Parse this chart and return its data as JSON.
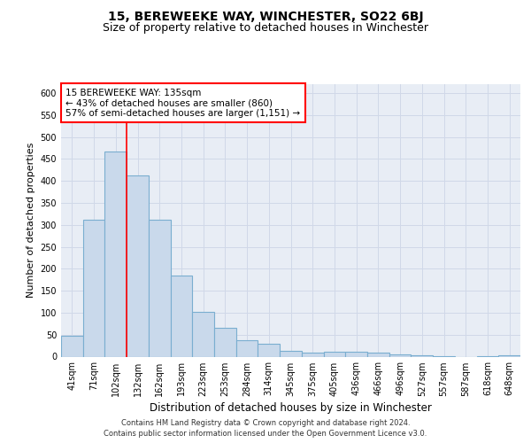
{
  "title": "15, BEREWEEKE WAY, WINCHESTER, SO22 6BJ",
  "subtitle": "Size of property relative to detached houses in Winchester",
  "xlabel": "Distribution of detached houses by size in Winchester",
  "ylabel": "Number of detached properties",
  "categories": [
    "41sqm",
    "71sqm",
    "102sqm",
    "132sqm",
    "162sqm",
    "193sqm",
    "223sqm",
    "253sqm",
    "284sqm",
    "314sqm",
    "345sqm",
    "375sqm",
    "405sqm",
    "436sqm",
    "466sqm",
    "496sqm",
    "527sqm",
    "557sqm",
    "587sqm",
    "618sqm",
    "648sqm"
  ],
  "values": [
    47,
    311,
    467,
    413,
    311,
    185,
    102,
    65,
    38,
    30,
    13,
    10,
    12,
    12,
    10,
    5,
    3,
    1,
    0,
    1,
    3
  ],
  "bar_color": "#c9d9eb",
  "bar_edge_color": "#7aaed0",
  "bar_linewidth": 0.8,
  "grid_color": "#d0d8e8",
  "bg_color": "#e8edf5",
  "vline_x_index": 2.5,
  "annotation_box_text": "15 BEREWEEKE WAY: 135sqm\n← 43% of detached houses are smaller (860)\n57% of semi-detached houses are larger (1,151) →",
  "annotation_box_color": "white",
  "annotation_box_edge_color": "red",
  "vline_color": "red",
  "ylim": [
    0,
    620
  ],
  "yticks": [
    0,
    50,
    100,
    150,
    200,
    250,
    300,
    350,
    400,
    450,
    500,
    550,
    600
  ],
  "footnote1": "Contains HM Land Registry data © Crown copyright and database right 2024.",
  "footnote2": "Contains public sector information licensed under the Open Government Licence v3.0.",
  "title_fontsize": 10,
  "subtitle_fontsize": 9,
  "xlabel_fontsize": 8.5,
  "ylabel_fontsize": 8,
  "tick_fontsize": 7,
  "annot_fontsize": 7.5,
  "footnote_fontsize": 6
}
